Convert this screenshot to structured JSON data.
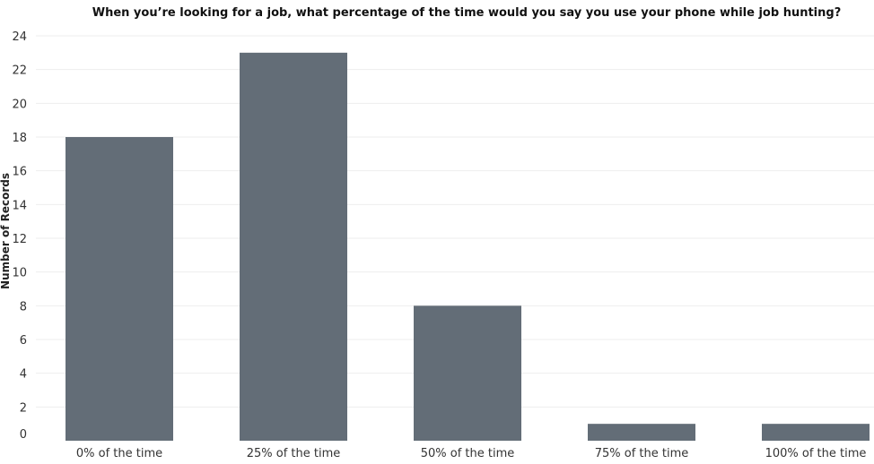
{
  "chart_data": {
    "type": "bar",
    "title": "When you’re looking for a job, what percentage of the time would you say you use your phone while job hunting?",
    "xlabel": "",
    "ylabel": "Number of Records",
    "categories": [
      "0% of the time",
      "25% of the time",
      "50% of the time",
      "75% of the time",
      "100% of the time"
    ],
    "values": [
      18,
      23,
      8,
      1,
      1
    ],
    "ylim": [
      0,
      24
    ],
    "yticks": [
      "0",
      "2",
      "4",
      "6",
      "8",
      "10",
      "12",
      "14",
      "16",
      "18",
      "20",
      "22",
      "24"
    ],
    "grid": true,
    "bar_color": "#636d77"
  }
}
